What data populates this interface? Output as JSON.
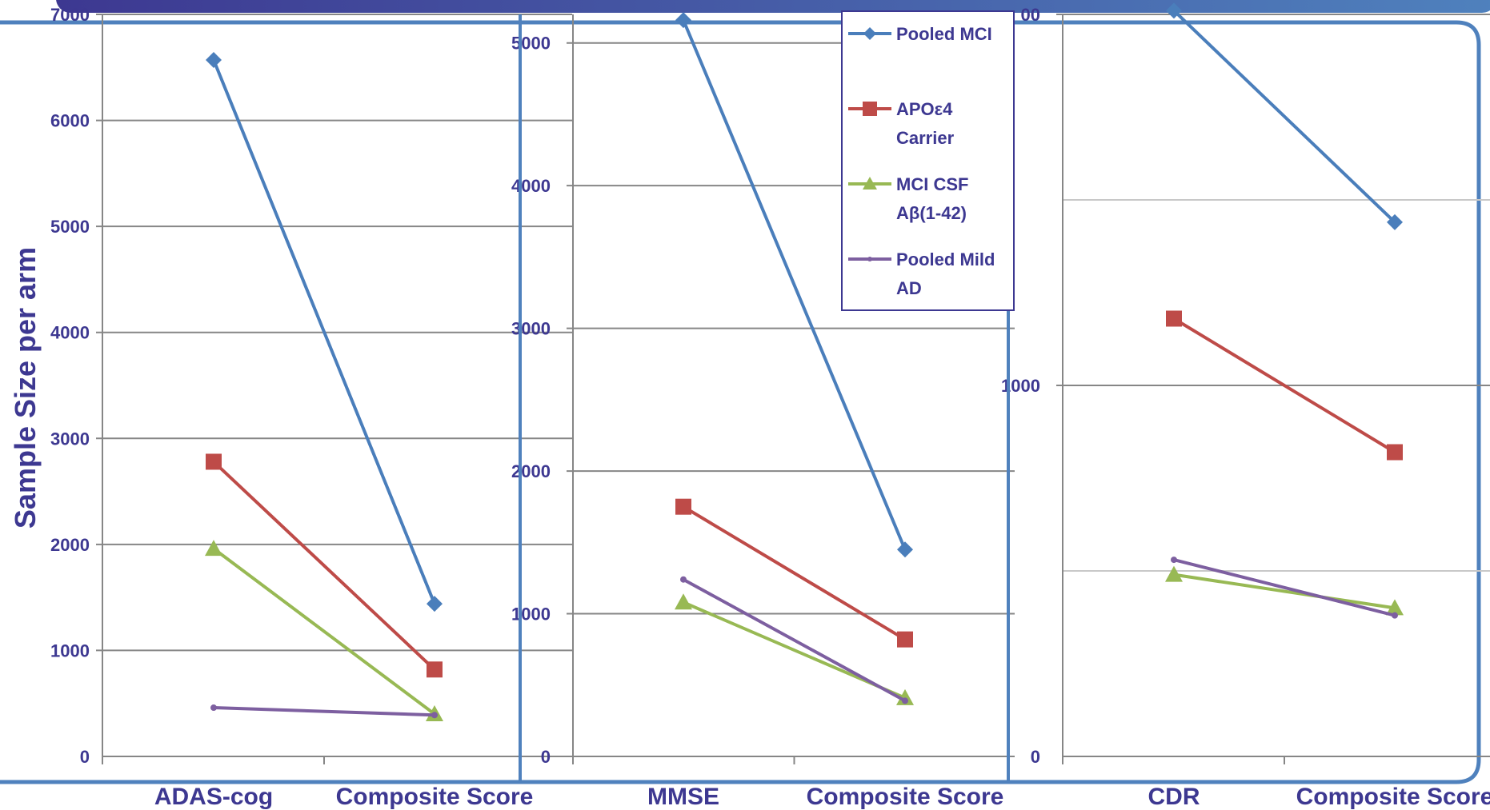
{
  "colors": {
    "pooled_mci": "#4a7ebb",
    "apoe4_carrier": "#be4b48",
    "mci_csf": "#98b954",
    "pooled_mild_ad": "#7d5fa0",
    "text": "#3d3891",
    "frame": "#4f81bd",
    "grid": "#868686"
  },
  "legend": {
    "items": [
      {
        "key": "pooled_mci",
        "lines": [
          "Pooled MCI"
        ],
        "marker": "diamond"
      },
      {
        "key": "apoe4_carrier",
        "lines": [
          "APOε4",
          "Carrier"
        ],
        "marker": "square"
      },
      {
        "key": "mci_csf",
        "lines": [
          "MCI CSF",
          "Aβ(1-42)"
        ],
        "marker": "triangle"
      },
      {
        "key": "pooled_mild_ad",
        "lines": [
          "Pooled Mild",
          "AD"
        ],
        "marker": "dot"
      }
    ]
  },
  "chart_data": [
    {
      "type": "line",
      "ylabel": "Sample Size per arm",
      "categories": [
        "ADAS-cog",
        "Composite Score"
      ],
      "yticks": [
        "0",
        "1000",
        "2000",
        "3000",
        "4000",
        "5000",
        "6000",
        "7000"
      ],
      "ylim": [
        0,
        7000
      ],
      "grid": true,
      "series": [
        {
          "key": "pooled_mci",
          "values": [
            6570,
            1440
          ]
        },
        {
          "key": "apoe4_carrier",
          "values": [
            2780,
            820
          ]
        },
        {
          "key": "mci_csf",
          "values": [
            1960,
            400
          ]
        },
        {
          "key": "pooled_mild_ad",
          "values": [
            460,
            390
          ]
        }
      ]
    },
    {
      "type": "line",
      "categories": [
        "MMSE",
        "Composite Score"
      ],
      "yticks": [
        "0",
        "1000",
        "2000",
        "3000",
        "4000",
        "5000"
      ],
      "ylim": [
        0,
        5200
      ],
      "grid": true,
      "series": [
        {
          "key": "pooled_mci",
          "values": [
            5160,
            1450
          ]
        },
        {
          "key": "apoe4_carrier",
          "values": [
            1750,
            820
          ]
        },
        {
          "key": "mci_csf",
          "values": [
            1080,
            410
          ]
        },
        {
          "key": "pooled_mild_ad",
          "values": [
            1240,
            390
          ]
        }
      ]
    },
    {
      "type": "line",
      "categories": [
        "CDR",
        "Composite Score"
      ],
      "yticks": [
        "0",
        "1000",
        "00"
      ],
      "ylim": [
        0,
        2000
      ],
      "grid": true,
      "series": [
        {
          "key": "pooled_mci",
          "values": [
            2010,
            1440
          ]
        },
        {
          "key": "apoe4_carrier",
          "values": [
            1180,
            820
          ]
        },
        {
          "key": "mci_csf",
          "values": [
            490,
            400
          ]
        },
        {
          "key": "pooled_mild_ad",
          "values": [
            530,
            380
          ]
        }
      ]
    }
  ]
}
